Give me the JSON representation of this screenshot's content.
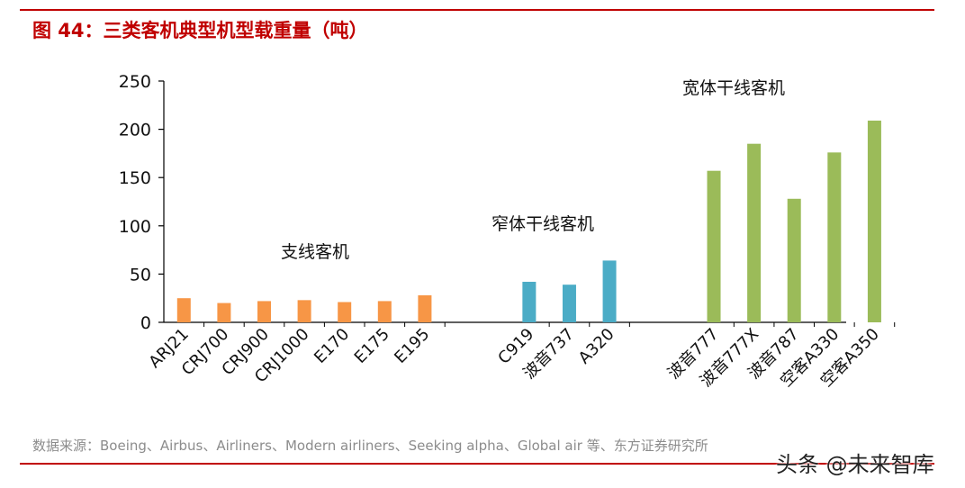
{
  "header": {
    "title": "图 44：三类客机典型机型载重量（吨）"
  },
  "footer": {
    "source": "数据来源：Boeing、Airbus、Airliners、Modern airliners、Seeking alpha、Global air 等、东方证券研究所",
    "watermark": "头条 @未来智库"
  },
  "chart_data": {
    "type": "bar",
    "title": "图 44：三类客机典型机型载重量（吨）",
    "xlabel": "",
    "ylabel": "",
    "ylim": [
      0,
      250
    ],
    "yticks": [
      0,
      50,
      100,
      150,
      200,
      250
    ],
    "grid": false,
    "groups": [
      {
        "label": "支线客机",
        "color": "#f79646",
        "categories": [
          "ARJ21",
          "CRJ700",
          "CRJ900",
          "CRJ1000",
          "E170",
          "E175",
          "E195"
        ],
        "values": [
          25,
          20,
          22,
          23,
          21,
          22,
          28
        ]
      },
      {
        "label": "窄体干线客机",
        "color": "#4bacc6",
        "categories": [
          "C919",
          "波音737",
          "A320"
        ],
        "values": [
          42,
          39,
          64
        ]
      },
      {
        "label": "宽体干线客机",
        "color": "#9bbb59",
        "categories": [
          "波音777",
          "波音777X",
          "波音787",
          "空客A330",
          "空客A350"
        ],
        "values": [
          157,
          185,
          128,
          176,
          209
        ]
      }
    ]
  }
}
